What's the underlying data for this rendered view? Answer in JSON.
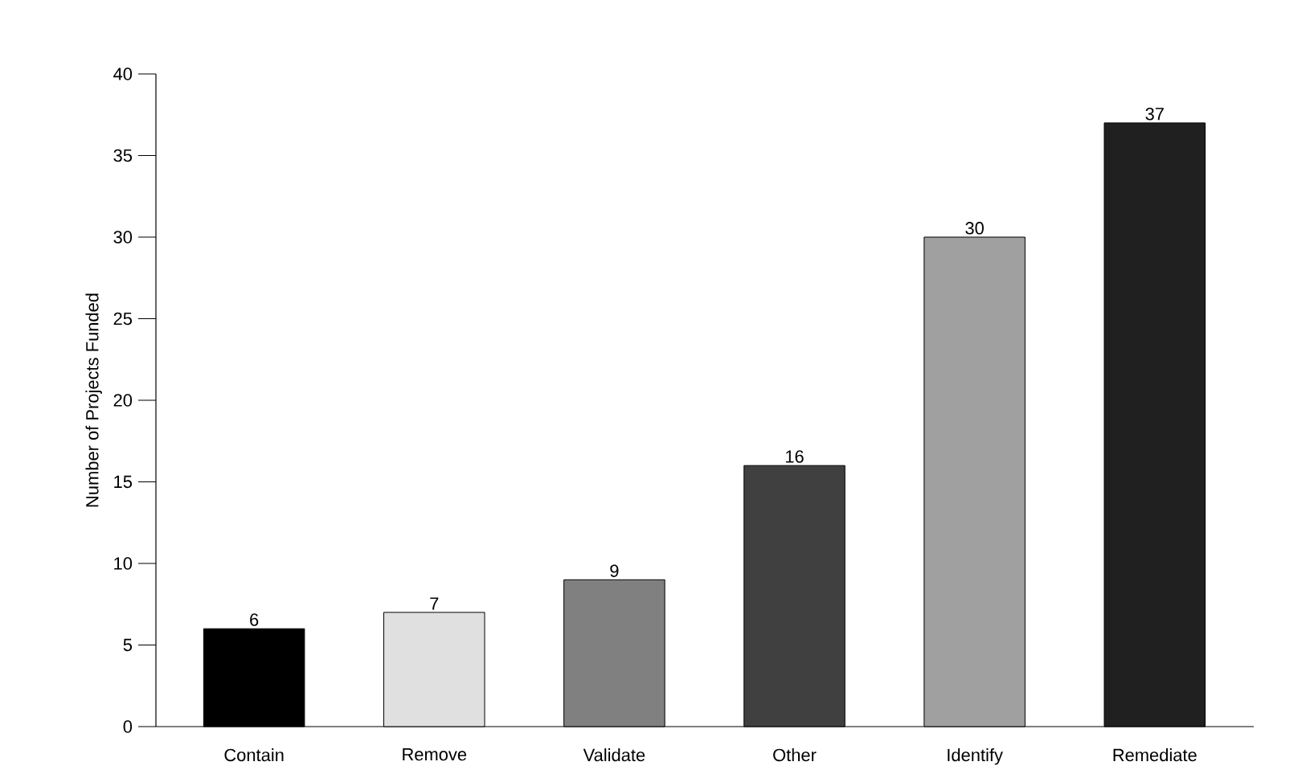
{
  "chart_data": {
    "type": "bar",
    "ylabel": "Number of Projects Funded",
    "categories": [
      "Contain",
      "Remove",
      "Validate",
      "Other",
      "Identify",
      "Remediate"
    ],
    "values": [
      6,
      7,
      9,
      16,
      30,
      37
    ],
    "data_labels": true,
    "colors": [
      "#000000",
      "#e0e0e0",
      "#808080",
      "#404040",
      "#a0a0a0",
      "#202020"
    ],
    "ylim": [
      0,
      40
    ],
    "yticks": [
      0,
      5,
      10,
      15,
      20,
      25,
      30,
      35,
      40
    ],
    "grid": false
  }
}
